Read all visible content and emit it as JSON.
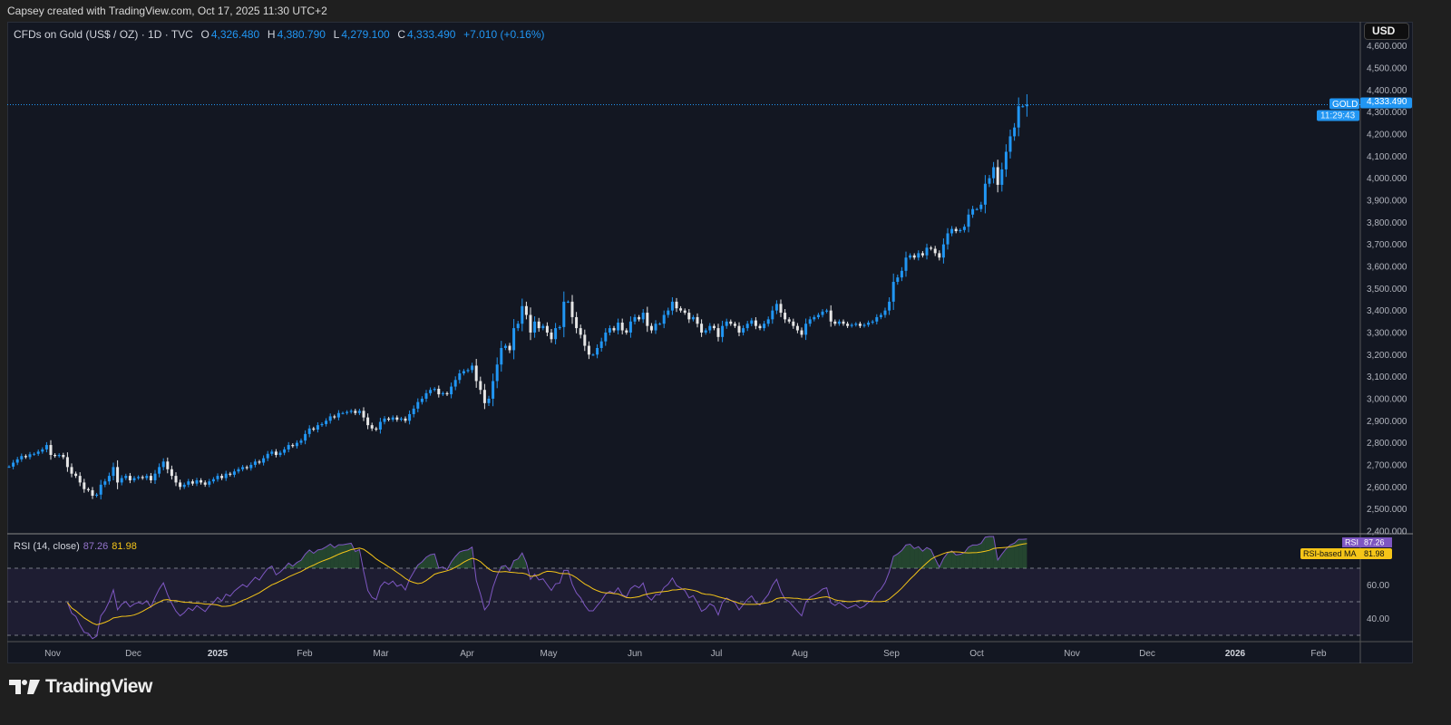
{
  "credit": "Capsey created with TradingView.com, Oct 17, 2025 11:30 UTC+2",
  "legend": {
    "symbol": "CFDs on Gold (US$ / OZ) · 1D · TVC",
    "o_label": "O",
    "o": "4,326.480",
    "h_label": "H",
    "h": "4,380.790",
    "l_label": "L",
    "l": "4,279.100",
    "c_label": "C",
    "c": "4,333.490",
    "change": "+7.010 (+0.16%)"
  },
  "currency": "USD",
  "price_tag": {
    "symbol": "GOLD",
    "price": "4,333.490",
    "countdown": "11:29:43"
  },
  "rsi_legend": {
    "title": "RSI (14, close)",
    "rsi": "87.26",
    "ma": "81.98"
  },
  "rsi_tags": {
    "rsi_label": "RSI",
    "rsi": "87.26",
    "ma_label": "RSI-based MA",
    "ma": "81.98"
  },
  "footer": {
    "brand": "TradingView"
  },
  "colors": {
    "up": "#2196f3",
    "down": "#e6e6e6",
    "rsi": "#7e57c2",
    "rsi_ma": "#f5c518",
    "background": "#131722"
  },
  "chart_data": {
    "type": "candlestick",
    "title": "CFDs on Gold (US$ / OZ) · 1D · TVC",
    "ylim": [
      2400,
      4600
    ],
    "yticks": [
      "4,600.000",
      "4,500.000",
      "4,400.000",
      "4,300.000",
      "4,200.000",
      "4,100.000",
      "4,000.000",
      "3,900.000",
      "3,800.000",
      "3,700.000",
      "3,600.000",
      "3,500.000",
      "3,400.000",
      "3,300.000",
      "3,200.000",
      "3,100.000",
      "3,000.000",
      "2,900.000",
      "2,800.000",
      "2,700.000",
      "2,600.000",
      "2,500.000",
      "2,400.000"
    ],
    "ytick_values": [
      4600,
      4500,
      4400,
      4300,
      4200,
      4100,
      4000,
      3900,
      3800,
      3700,
      3600,
      3500,
      3400,
      3300,
      3200,
      3100,
      3000,
      2900,
      2800,
      2700,
      2600,
      2500,
      2400
    ],
    "xticks": [
      "Nov",
      "Dec",
      "2025",
      "Feb",
      "Mar",
      "Apr",
      "May",
      "Jun",
      "Jul",
      "Aug",
      "Sep",
      "Oct",
      "Nov",
      "Dec",
      "2026",
      "Feb"
    ],
    "last_bar": {
      "open": 4326.48,
      "high": 4380.79,
      "low": 4279.1,
      "close": 4333.49
    },
    "closes": [
      2692,
      2710,
      2725,
      2740,
      2735,
      2748,
      2750,
      2760,
      2770,
      2790,
      2745,
      2740,
      2745,
      2735,
      2690,
      2660,
      2650,
      2620,
      2590,
      2585,
      2560,
      2565,
      2610,
      2625,
      2650,
      2690,
      2620,
      2640,
      2650,
      2630,
      2640,
      2645,
      2640,
      2650,
      2630,
      2660,
      2690,
      2715,
      2680,
      2650,
      2620,
      2600,
      2610,
      2625,
      2615,
      2630,
      2620,
      2610,
      2625,
      2635,
      2650,
      2640,
      2660,
      2655,
      2670,
      2680,
      2690,
      2685,
      2700,
      2715,
      2710,
      2730,
      2750,
      2760,
      2745,
      2755,
      2770,
      2790,
      2785,
      2800,
      2810,
      2840,
      2865,
      2860,
      2880,
      2885,
      2900,
      2920,
      2915,
      2935,
      2935,
      2940,
      2945,
      2935,
      2945,
      2915,
      2880,
      2865,
      2860,
      2895,
      2910,
      2905,
      2915,
      2905,
      2910,
      2900,
      2930,
      2955,
      2985,
      3000,
      3025,
      3040,
      3045,
      3020,
      3025,
      3020,
      3055,
      3085,
      3115,
      3125,
      3130,
      3150,
      3080,
      3040,
      2980,
      3000,
      3080,
      3155,
      3230,
      3240,
      3220,
      3320,
      3340,
      3420,
      3380,
      3300,
      3350,
      3320,
      3330,
      3300,
      3270,
      3320,
      3325,
      3440,
      3440,
      3370,
      3320,
      3290,
      3240,
      3200,
      3200,
      3230,
      3260,
      3300,
      3320,
      3310,
      3345,
      3310,
      3300,
      3350,
      3370,
      3360,
      3390,
      3330,
      3310,
      3340,
      3340,
      3380,
      3400,
      3440,
      3410,
      3400,
      3390,
      3360,
      3370,
      3340,
      3300,
      3310,
      3330,
      3320,
      3280,
      3330,
      3350,
      3340,
      3330,
      3300,
      3320,
      3340,
      3355,
      3330,
      3320,
      3340,
      3360,
      3400,
      3430,
      3390,
      3360,
      3350,
      3330,
      3310,
      3290,
      3340,
      3360,
      3370,
      3380,
      3395,
      3400,
      3350,
      3340,
      3350,
      3340,
      3330,
      3335,
      3340,
      3330,
      3335,
      3345,
      3350,
      3370,
      3380,
      3400,
      3440,
      3530,
      3550,
      3580,
      3640,
      3650,
      3640,
      3660,
      3650,
      3685,
      3680,
      3660,
      3640,
      3700,
      3750,
      3770,
      3760,
      3765,
      3780,
      3835,
      3860,
      3860,
      3880,
      3975,
      4000,
      4050,
      3970,
      4040,
      4120,
      4190,
      4230,
      4326.48,
      4326.48,
      4333.49
    ],
    "rsi": {
      "period": 14,
      "ma_period": 14,
      "ylim": [
        20,
        90
      ],
      "levels": [
        70,
        50,
        30
      ],
      "yticks": [
        "60.00",
        "40.00"
      ],
      "ytick_values": [
        60,
        40
      ]
    }
  }
}
